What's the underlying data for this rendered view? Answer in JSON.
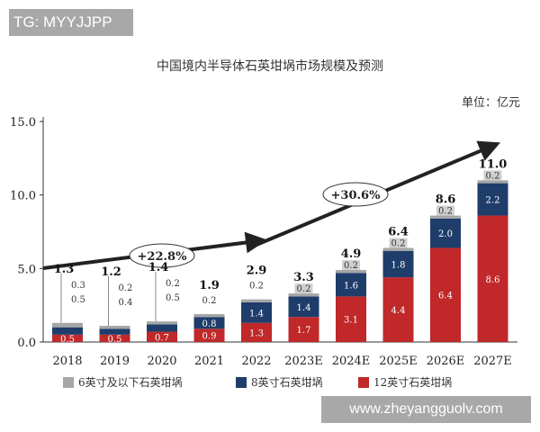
{
  "watermark_top": "TG: MYYJJPP",
  "watermark_bottom": "www.zheyangguolv.com",
  "chart_data": {
    "type": "bar",
    "stacked": true,
    "title": "中国境内半导体石英坩埚市场规模及预测",
    "unit": "单位：亿元",
    "categories": [
      "2018",
      "2019",
      "2020",
      "2021",
      "2022",
      "2023E",
      "2024E",
      "2025E",
      "2026E",
      "2027E"
    ],
    "series": [
      {
        "name": "12英寸石英坩埚",
        "color": "#c0282a",
        "values": [
          0.5,
          0.5,
          0.7,
          0.9,
          1.3,
          1.7,
          3.1,
          4.4,
          6.4,
          8.6
        ]
      },
      {
        "name": "8英寸石英坩埚",
        "color": "#1f3d6b",
        "values": [
          0.5,
          0.4,
          0.5,
          0.8,
          1.4,
          1.4,
          1.6,
          1.8,
          2.0,
          2.2
        ]
      },
      {
        "name": "6英寸及以下石英坩埚",
        "color": "#a6a6a6",
        "values": [
          0.3,
          0.2,
          0.2,
          0.2,
          0.2,
          0.2,
          0.2,
          0.2,
          0.2,
          0.2
        ]
      }
    ],
    "totals": [
      "1.3",
      "1.2",
      "1.4",
      "1.9",
      "2.9",
      "3.3",
      "4.9",
      "6.4",
      "8.6",
      "11.0"
    ],
    "yticks": [
      "0.0",
      "5.0",
      "10.0",
      "15.0"
    ],
    "ylim": [
      0,
      15
    ],
    "annotations": [
      {
        "label": "+22.8%",
        "from": "2018",
        "to": "2022"
      },
      {
        "label": "+30.6%",
        "from": "2022",
        "to": "2027E"
      }
    ],
    "legend_position": "bottom",
    "grid": false
  }
}
